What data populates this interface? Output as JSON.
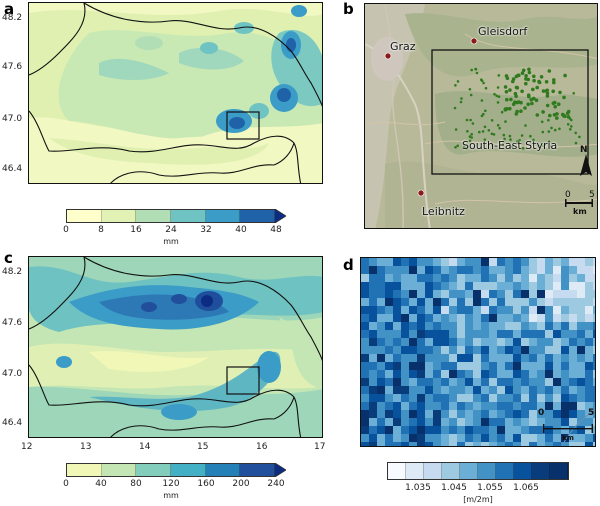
{
  "panels": {
    "a": {
      "label": "a",
      "yticks": [
        "48.2",
        "47.6",
        "47.0",
        "46.4"
      ],
      "colorbar": {
        "ticks": [
          "0",
          "8",
          "16",
          "24",
          "32",
          "40",
          "48"
        ],
        "unit": "mm",
        "colors": [
          "#ffffcc",
          "#e1f2b4",
          "#b2deb6",
          "#6fc4c3",
          "#3a9cc7",
          "#1f62a8",
          "#0c2c84"
        ]
      }
    },
    "b": {
      "label": "b",
      "places": {
        "gleisdorf": "Gleisdorf",
        "graz": "Graz",
        "leibnitz": "Leibnitz",
        "region": "South-East Styria"
      },
      "north_label": "N",
      "scalebar": {
        "zero": "0",
        "five": "5",
        "unit": "km"
      }
    },
    "c": {
      "label": "c",
      "yticks": [
        "48.2",
        "47.6",
        "47.0",
        "46.4"
      ],
      "xticks": [
        "12",
        "13",
        "14",
        "15",
        "16",
        "17"
      ],
      "colorbar": {
        "ticks": [
          "0",
          "40",
          "80",
          "120",
          "160",
          "200",
          "240"
        ],
        "unit": "mm",
        "colors": [
          "#f0f7b7",
          "#c4e6b4",
          "#82cdbb",
          "#44b0c5",
          "#2680b8",
          "#224f9b",
          "#0c2c84"
        ]
      }
    },
    "d": {
      "label": "d",
      "scalebar": {
        "zero": "0",
        "five": "5",
        "unit": "km"
      },
      "colorbar": {
        "ticks": [
          "1.035",
          "1.045",
          "1.055",
          "1.065"
        ],
        "unit": "[m/2m]",
        "colors": [
          "#f7fbff",
          "#deebf7",
          "#c6dbef",
          "#9ecae1",
          "#6baed6",
          "#4292c6",
          "#2171b5",
          "#08519c",
          "#083c7a",
          "#08306b"
        ]
      }
    }
  }
}
